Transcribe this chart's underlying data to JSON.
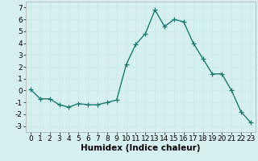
{
  "x": [
    0,
    1,
    2,
    3,
    4,
    5,
    6,
    7,
    8,
    9,
    10,
    11,
    12,
    13,
    14,
    15,
    16,
    17,
    18,
    19,
    20,
    21,
    22,
    23
  ],
  "y": [
    0.1,
    -0.7,
    -0.7,
    -1.2,
    -1.4,
    -1.1,
    -1.2,
    -1.2,
    -1.0,
    -0.8,
    2.2,
    3.9,
    4.8,
    6.8,
    5.4,
    6.0,
    5.8,
    4.0,
    2.7,
    1.4,
    1.4,
    0.0,
    -1.8,
    -2.7
  ],
  "line_color": "#1a7a6e",
  "marker": "+",
  "markersize": 4,
  "linewidth": 1.0,
  "xlabel": "Humidex (Indice chaleur)",
  "xlim": [
    -0.5,
    23.5
  ],
  "ylim": [
    -3.5,
    7.5
  ],
  "yticks": [
    -3,
    -2,
    -1,
    0,
    1,
    2,
    3,
    4,
    5,
    6,
    7
  ],
  "xticks": [
    0,
    1,
    2,
    3,
    4,
    5,
    6,
    7,
    8,
    9,
    10,
    11,
    12,
    13,
    14,
    15,
    16,
    17,
    18,
    19,
    20,
    21,
    22,
    23
  ],
  "background_color": "#d6f0ef",
  "grid_color": "#c8e8e6",
  "tick_fontsize": 6.5,
  "label_fontsize": 7.5
}
